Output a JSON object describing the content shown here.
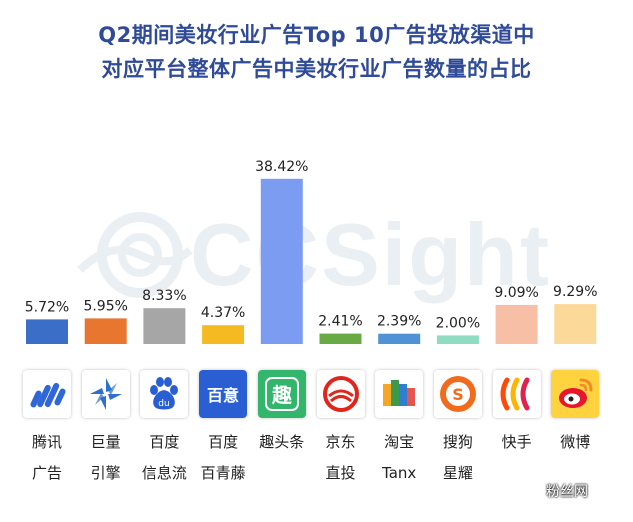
{
  "title": {
    "line1": "Q2期间美妆行业广告Top 10广告投放渠道中",
    "line2": "对应平台整体广告中美妆行业广告数量的占比"
  },
  "watermark": "CCSight",
  "signature": "粉丝网",
  "chart_data": {
    "type": "bar",
    "title": "Q2期间美妆行业广告Top 10广告投放渠道中对应平台整体广告中美妆行业广告数量的占比",
    "categories": [
      "腾讯广告",
      "巨量引擎",
      "百度信息流",
      "百度百青藤",
      "趣头条",
      "京东直投",
      "淘宝Tanx",
      "搜狗星耀",
      "快手",
      "微博"
    ],
    "values": [
      5.72,
      5.95,
      8.33,
      4.37,
      38.42,
      2.41,
      2.39,
      2.0,
      9.09,
      9.29
    ],
    "value_labels": [
      "5.72%",
      "5.95%",
      "8.33%",
      "4.37%",
      "38.42%",
      "2.41%",
      "2.39%",
      "2.00%",
      "9.09%",
      "9.29%"
    ],
    "colors": [
      "#3b6fc7",
      "#e8762e",
      "#a6a6a6",
      "#f5b921",
      "#7b9cf0",
      "#6aaa45",
      "#4f93d6",
      "#8fdcc3",
      "#f7bfa6",
      "#fbd998"
    ],
    "xlabel": "",
    "ylabel": "",
    "ylim": [
      0,
      40
    ],
    "grid": false,
    "legend": "none"
  },
  "platforms": [
    {
      "line1": "腾讯",
      "line2": "广告",
      "icon": "tencent-ads-icon",
      "color": "#2f67d8"
    },
    {
      "line1": "巨量",
      "line2": "引擎",
      "icon": "ocean-engine-icon",
      "color": "#2e6fd0"
    },
    {
      "line1": "百度",
      "line2": "信息流",
      "icon": "baidu-paw-icon",
      "color": "#2a5fd3"
    },
    {
      "line1": "百度",
      "line2": "百青藤",
      "icon": "baidu-baiqingteng-icon",
      "color": "#2a5fd3",
      "icon_text": "百意"
    },
    {
      "line1": "趣头条",
      "line2": "",
      "icon": "qutoutiao-icon",
      "color": "#32b66b",
      "icon_text": "趣"
    },
    {
      "line1": "京东",
      "line2": "直投",
      "icon": "jd-icon",
      "color": "#e1251b"
    },
    {
      "line1": "淘宝",
      "line2": "Tanx",
      "icon": "tanx-icon",
      "color": "#f08a24"
    },
    {
      "line1": "搜狗",
      "line2": "星耀",
      "icon": "sogou-icon",
      "color": "#f26b1d"
    },
    {
      "line1": "快手",
      "line2": "",
      "icon": "kuaishou-icon",
      "color": "#ff4906"
    },
    {
      "line1": "微博",
      "line2": "",
      "icon": "weibo-icon",
      "color": "#e6162d"
    }
  ]
}
